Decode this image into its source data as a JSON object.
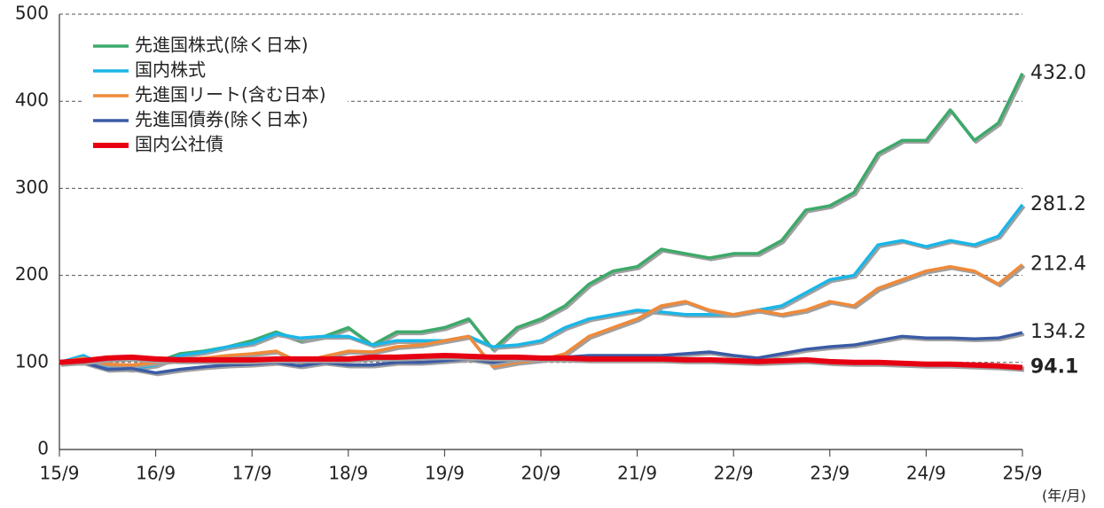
{
  "chart_data": {
    "type": "line",
    "x_label": "(年/月)",
    "categories": [
      "15/9",
      null,
      null,
      null,
      "16/9",
      null,
      null,
      null,
      "17/9",
      null,
      null,
      null,
      "18/9",
      null,
      null,
      null,
      "19/9",
      null,
      null,
      null,
      "20/9",
      null,
      null,
      null,
      "21/9",
      null,
      null,
      null,
      "22/9",
      null,
      null,
      null,
      "23/9",
      null,
      null,
      null,
      "24/9",
      null,
      null,
      null,
      "25/9"
    ],
    "ylim": [
      0,
      500
    ],
    "yticks": [
      0,
      100,
      200,
      300,
      400,
      500
    ],
    "grid": true,
    "legend": "upper left",
    "series": [
      {
        "name": "先進国株式(除く日本)",
        "color": "#3daa6a",
        "values": [
          100,
          105,
          95,
          92,
          100,
          110,
          113,
          118,
          125,
          135,
          125,
          130,
          140,
          120,
          135,
          135,
          140,
          150,
          115,
          140,
          150,
          165,
          190,
          205,
          210,
          230,
          225,
          220,
          225,
          225,
          240,
          275,
          280,
          295,
          340,
          355,
          355,
          390,
          355,
          375,
          432.0
        ],
        "value_labels": [
          null,
          null,
          null,
          null,
          null,
          null,
          null,
          null,
          null,
          null,
          null,
          null,
          null,
          null,
          null,
          null,
          null,
          null,
          null,
          null,
          null,
          null,
          null,
          null,
          null,
          null,
          null,
          null,
          null,
          null,
          null,
          null,
          null,
          null,
          null,
          null,
          null,
          null,
          null,
          null,
          "432.0"
        ]
      },
      {
        "name": "国内株式",
        "color": "#1ab6e8",
        "values": [
          100,
          108,
          95,
          93,
          97,
          108,
          112,
          118,
          122,
          133,
          128,
          130,
          130,
          120,
          125,
          125,
          125,
          130,
          118,
          120,
          125,
          140,
          150,
          155,
          160,
          158,
          155,
          155,
          155,
          160,
          165,
          180,
          195,
          200,
          235,
          240,
          233,
          240,
          235,
          245,
          281.2
        ],
        "value_labels": [
          null,
          null,
          null,
          null,
          null,
          null,
          null,
          null,
          null,
          null,
          null,
          null,
          null,
          null,
          null,
          null,
          null,
          null,
          null,
          null,
          null,
          null,
          null,
          null,
          null,
          null,
          null,
          null,
          null,
          null,
          null,
          null,
          null,
          null,
          null,
          null,
          null,
          null,
          null,
          null,
          "281.2"
        ]
      },
      {
        "name": "先進国リート(含む日本)",
        "color": "#ef8a3a",
        "values": [
          100,
          105,
          98,
          97,
          100,
          103,
          105,
          108,
          110,
          113,
          100,
          107,
          113,
          112,
          118,
          120,
          125,
          130,
          95,
          100,
          103,
          110,
          130,
          140,
          150,
          165,
          170,
          160,
          155,
          160,
          155,
          160,
          170,
          165,
          185,
          195,
          205,
          210,
          205,
          190,
          212.4
        ],
        "value_labels": [
          null,
          null,
          null,
          null,
          null,
          null,
          null,
          null,
          null,
          null,
          null,
          null,
          null,
          null,
          null,
          null,
          null,
          null,
          null,
          null,
          null,
          null,
          null,
          null,
          null,
          null,
          null,
          null,
          null,
          null,
          null,
          null,
          null,
          null,
          null,
          null,
          null,
          null,
          null,
          null,
          "212.4"
        ]
      },
      {
        "name": "先進国債券(除く日本)",
        "color": "#3b5ba5",
        "values": [
          100,
          100,
          92,
          93,
          88,
          92,
          95,
          97,
          98,
          100,
          96,
          100,
          97,
          97,
          100,
          100,
          102,
          104,
          100,
          104,
          106,
          106,
          108,
          108,
          108,
          108,
          110,
          112,
          108,
          105,
          110,
          115,
          118,
          120,
          125,
          130,
          128,
          128,
          127,
          128,
          134.2
        ],
        "value_labels": [
          null,
          null,
          null,
          null,
          null,
          null,
          null,
          null,
          null,
          null,
          null,
          null,
          null,
          null,
          null,
          null,
          null,
          null,
          null,
          null,
          null,
          null,
          null,
          null,
          null,
          null,
          null,
          null,
          null,
          null,
          null,
          null,
          null,
          null,
          null,
          null,
          null,
          null,
          null,
          null,
          "134.2"
        ]
      },
      {
        "name": "国内公社債",
        "color": "#e60012",
        "values": [
          100,
          102,
          105,
          106,
          104,
          103,
          103,
          103,
          103,
          104,
          104,
          104,
          104,
          106,
          106,
          107,
          108,
          107,
          106,
          106,
          105,
          105,
          104,
          104,
          104,
          104,
          103,
          103,
          102,
          101,
          102,
          103,
          101,
          100,
          100,
          99,
          98,
          98,
          97,
          96,
          94.1
        ],
        "value_labels": [
          null,
          null,
          null,
          null,
          null,
          null,
          null,
          null,
          null,
          null,
          null,
          null,
          null,
          null,
          null,
          null,
          null,
          null,
          null,
          null,
          null,
          null,
          null,
          null,
          null,
          null,
          null,
          null,
          null,
          null,
          null,
          null,
          null,
          null,
          null,
          null,
          null,
          null,
          null,
          null,
          "94.1"
        ]
      }
    ]
  }
}
